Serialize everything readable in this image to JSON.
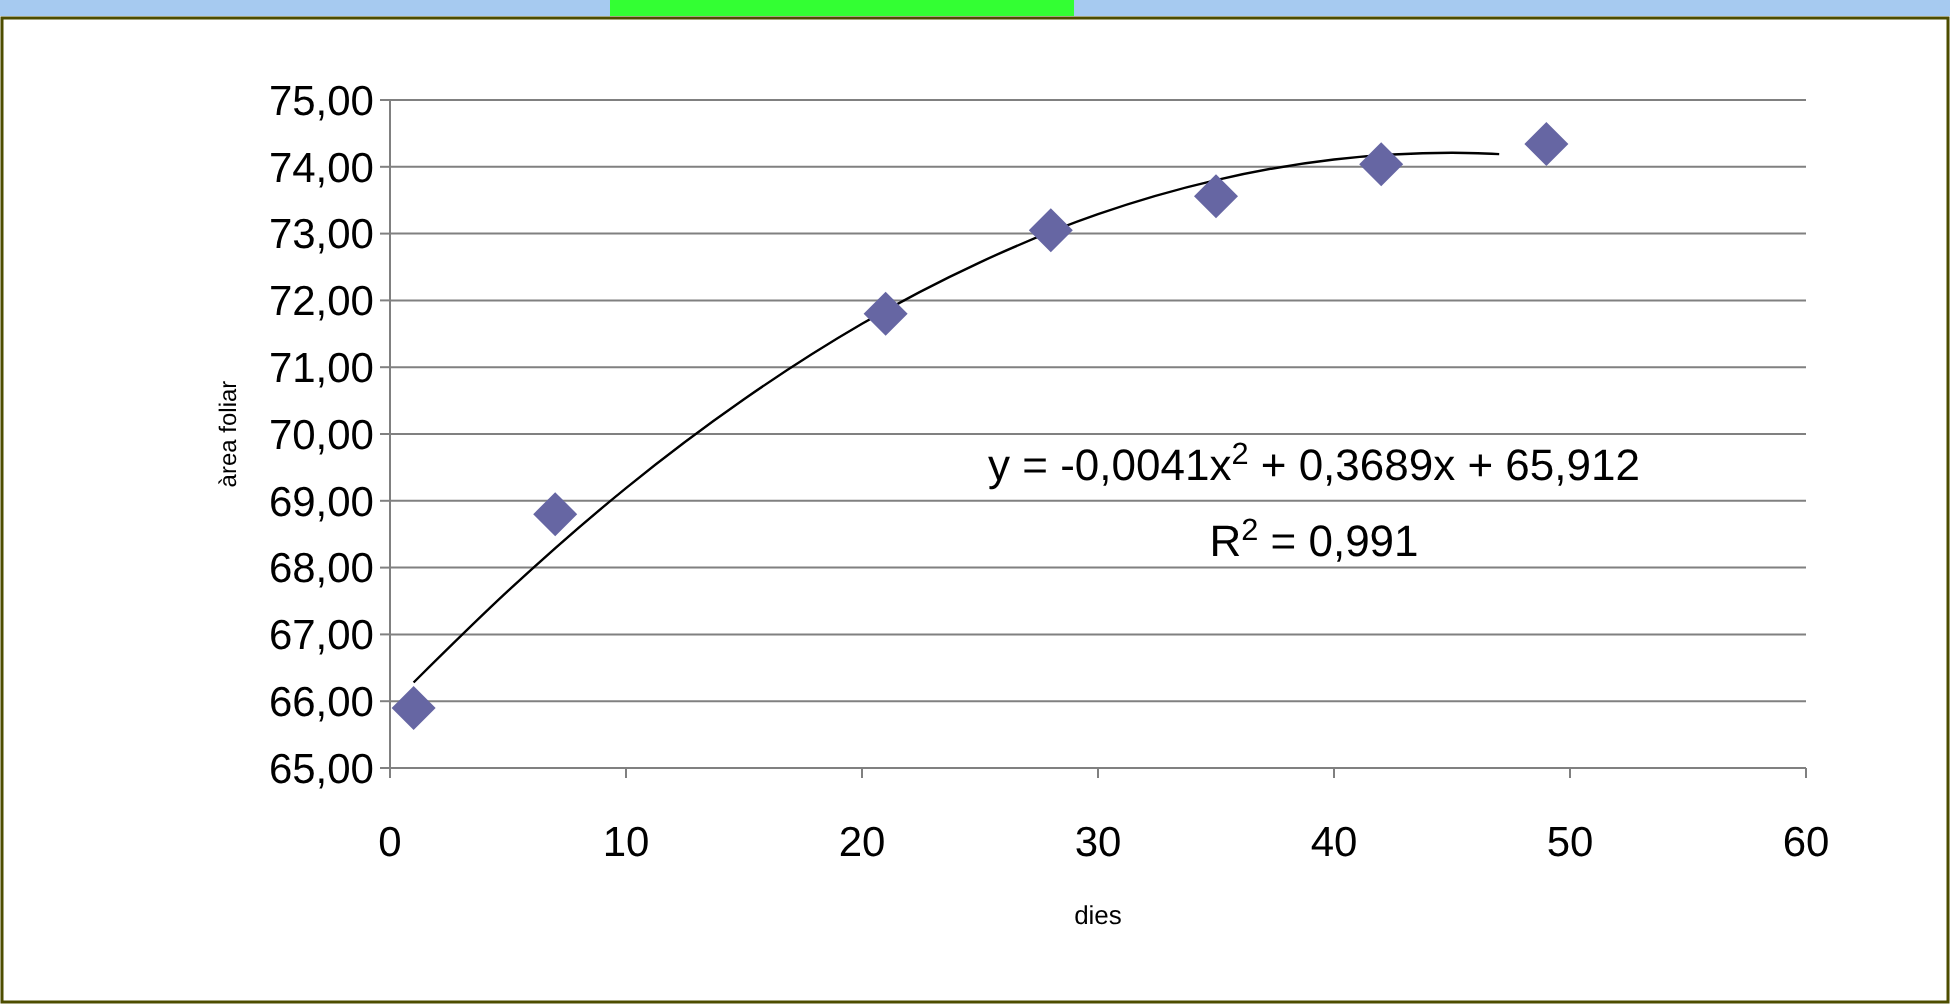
{
  "chart_data": {
    "type": "scatter",
    "xlabel": "dies",
    "ylabel": "àrea foliar",
    "xlim": [
      0,
      60
    ],
    "xticks": [
      0,
      10,
      20,
      30,
      40,
      50,
      60
    ],
    "ylim": [
      65,
      75
    ],
    "yticks": [
      {
        "value": 65,
        "label": "65,00"
      },
      {
        "value": 66,
        "label": "66,00"
      },
      {
        "value": 67,
        "label": "67,00"
      },
      {
        "value": 68,
        "label": "68,00"
      },
      {
        "value": 69,
        "label": "69,00"
      },
      {
        "value": 70,
        "label": "70,00"
      },
      {
        "value": 71,
        "label": "71,00"
      },
      {
        "value": 72,
        "label": "72,00"
      },
      {
        "value": 73,
        "label": "73,00"
      },
      {
        "value": 74,
        "label": "74,00"
      },
      {
        "value": 75,
        "label": "75,00"
      }
    ],
    "grid": "y",
    "series": [
      {
        "color": "#6666a3",
        "marker": "diamond",
        "x": [
          1,
          7,
          21,
          28,
          35,
          42,
          49
        ],
        "values": [
          65.9,
          68.8,
          71.8,
          73.05,
          73.56,
          74.04,
          74.34
        ]
      },
      {
        "type": "line",
        "color": "#000000",
        "marker": "none",
        "x": [
          1,
          5,
          10,
          15,
          20,
          25,
          30,
          35,
          40,
          45,
          47
        ],
        "values": [
          66.28,
          67.65,
          69.19,
          70.52,
          71.65,
          72.57,
          73.29,
          73.8,
          74.11,
          74.21,
          74.19
        ]
      }
    ],
    "annotations": [
      "y = -0,0041x$^{2}$ + 0,3689x + 65,912",
      "R$^{2}$ = 0,991"
    ]
  }
}
